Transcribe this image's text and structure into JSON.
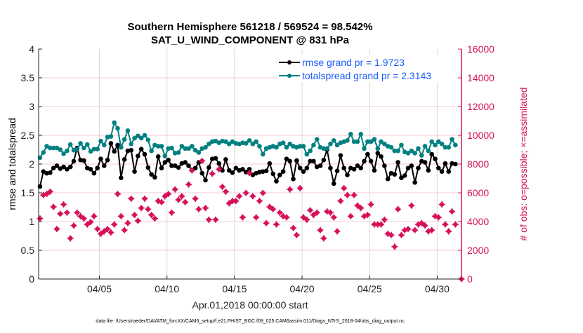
{
  "chart_data": {
    "type": "line",
    "title": [
      "Southern Hemisphere 561218 / 569524 = 98.542%",
      "SAT_U_WIND_COMPONENT @ 831 hPa"
    ],
    "xlabel": "Apr.01,2018 00:00:00 start",
    "ylabel": "rmse and totalspread",
    "y2label": "# of obs: o=possible; ×=assimilated",
    "footer": "data file: /Users/raeder/DAI/ATM_forcXX/CAM6_setup/f.e21.FHIST_BGC.f09_025.CAM6assim.011/Diags_NTrS_2018-04/obs_diag_output.nc",
    "xlim": [
      0.5,
      31.8
    ],
    "ylim": [
      0,
      4
    ],
    "y2lim": [
      0,
      16000
    ],
    "xticks": [
      {
        "v": 5,
        "label": "04/05"
      },
      {
        "v": 10,
        "label": "04/10"
      },
      {
        "v": 15,
        "label": "04/15"
      },
      {
        "v": 20,
        "label": "04/20"
      },
      {
        "v": 25,
        "label": "04/25"
      },
      {
        "v": 30,
        "label": "04/30"
      }
    ],
    "yticks": [
      "0",
      "0.5",
      "1",
      "1.5",
      "2",
      "2.5",
      "3",
      "3.5",
      "4"
    ],
    "y2ticks": [
      "0",
      "2000",
      "4000",
      "6000",
      "8000",
      "10000",
      "12000",
      "14000",
      "16000"
    ],
    "grid": true,
    "legend": {
      "placement": "top-right",
      "text_color": "#1a5cff"
    },
    "colors": {
      "rmse": "#000000",
      "totalspread": "#008080",
      "obs": "#d6105a",
      "grid_h": "#f2c8d8",
      "grid_v": "#d9d9d9"
    },
    "x": [
      0.6,
      0.85,
      1.1,
      1.35,
      1.6,
      1.85,
      2.1,
      2.35,
      2.6,
      2.85,
      3.1,
      3.35,
      3.6,
      3.85,
      4.1,
      4.35,
      4.6,
      4.85,
      5.1,
      5.35,
      5.6,
      5.85,
      6.1,
      6.35,
      6.6,
      6.85,
      7.1,
      7.35,
      7.6,
      7.85,
      8.1,
      8.35,
      8.6,
      8.85,
      9.1,
      9.35,
      9.6,
      9.85,
      10.1,
      10.35,
      10.6,
      10.85,
      11.1,
      11.35,
      11.6,
      11.85,
      12.1,
      12.35,
      12.6,
      12.85,
      13.1,
      13.35,
      13.6,
      13.85,
      14.1,
      14.35,
      14.6,
      14.85,
      15.1,
      15.35,
      15.6,
      15.85,
      16.1,
      16.35,
      16.6,
      16.85,
      17.1,
      17.35,
      17.6,
      17.85,
      18.1,
      18.35,
      18.6,
      18.85,
      19.1,
      19.35,
      19.6,
      19.85,
      20.1,
      20.35,
      20.6,
      20.85,
      21.1,
      21.35,
      21.6,
      21.85,
      22.1,
      22.35,
      22.6,
      22.85,
      23.1,
      23.35,
      23.6,
      23.85,
      24.1,
      24.35,
      24.6,
      24.85,
      25.1,
      25.35,
      25.6,
      25.85,
      26.1,
      26.35,
      26.6,
      26.85,
      27.1,
      27.35,
      27.6,
      27.85,
      28.1,
      28.35,
      28.6,
      28.85,
      29.1,
      29.35,
      29.6,
      29.85,
      30.1,
      30.35,
      30.6,
      30.85,
      31.1,
      31.35
    ],
    "series": [
      {
        "name": "rmse grand pr = 1.9723",
        "axis": "left",
        "marker": "circle",
        "values": [
          1.61,
          1.87,
          1.84,
          1.85,
          1.93,
          1.97,
          1.92,
          1.95,
          1.91,
          1.95,
          2.05,
          2.28,
          2.07,
          2.06,
          1.93,
          1.91,
          1.84,
          1.93,
          2.09,
          1.97,
          2.07,
          2.36,
          2.22,
          2.33,
          1.76,
          2.08,
          2.23,
          2.24,
          1.87,
          2.14,
          2.26,
          2.17,
          1.94,
          1.82,
          1.77,
          2.13,
          1.93,
          2.03,
          2.07,
          1.97,
          1.97,
          1.94,
          2.01,
          2.03,
          1.97,
          1.89,
          1.93,
          2.03,
          1.84,
          1.72,
          1.94,
          2.09,
          2.1,
          2.01,
          1.89,
          2.08,
          1.89,
          1.85,
          1.93,
          1.89,
          1.91,
          1.86,
          1.91,
          1.81,
          1.84,
          1.86,
          1.87,
          1.88,
          2.01,
          1.83,
          1.7,
          1.81,
          1.87,
          2.09,
          2.05,
          1.74,
          2.06,
          1.93,
          1.87,
          1.93,
          2.05,
          2.05,
          1.95,
          1.97,
          2.07,
          2.25,
          1.93,
          1.66,
          1.88,
          2.15,
          1.93,
          1.81,
          1.93,
          1.91,
          1.97,
          1.93,
          2.05,
          2.17,
          2.05,
          1.89,
          2.19,
          2.13,
          1.97,
          1.74,
          1.84,
          1.82,
          2.03,
          1.76,
          1.8,
          1.93,
          1.97,
          1.68,
          1.93,
          2.05,
          2.03,
          1.89,
          2.17,
          2.09,
          1.93,
          1.87,
          2.01,
          1.87,
          2.01,
          2.0
        ]
      },
      {
        "name": "totalspread grand pr = 2.3143",
        "axis": "left",
        "marker": "circle",
        "values": [
          2.11,
          2.2,
          2.31,
          2.28,
          2.28,
          2.28,
          2.25,
          2.18,
          2.23,
          2.34,
          2.24,
          2.26,
          2.36,
          2.28,
          2.34,
          2.22,
          2.26,
          2.26,
          2.4,
          2.33,
          2.47,
          2.48,
          2.72,
          2.62,
          2.29,
          2.43,
          2.58,
          2.35,
          2.45,
          2.49,
          2.45,
          2.5,
          2.42,
          2.23,
          2.33,
          2.31,
          2.31,
          2.14,
          2.27,
          2.28,
          2.19,
          2.2,
          2.31,
          2.27,
          2.27,
          2.31,
          2.24,
          2.2,
          2.27,
          2.29,
          2.35,
          2.39,
          2.4,
          2.37,
          2.4,
          2.39,
          2.35,
          2.39,
          2.36,
          2.35,
          2.37,
          2.36,
          2.41,
          2.35,
          2.39,
          2.31,
          2.17,
          2.27,
          2.29,
          2.31,
          2.29,
          2.35,
          2.37,
          2.29,
          2.35,
          2.31,
          2.29,
          2.31,
          2.31,
          2.17,
          2.23,
          2.33,
          2.43,
          2.29,
          2.27,
          2.27,
          2.35,
          2.41,
          2.33,
          2.37,
          2.39,
          2.41,
          2.52,
          2.39,
          2.39,
          2.52,
          2.27,
          2.39,
          2.39,
          2.43,
          2.27,
          2.39,
          2.35,
          2.31,
          2.29,
          2.23,
          2.23,
          2.33,
          2.21,
          2.19,
          2.23,
          2.19,
          2.27,
          2.15,
          2.31,
          2.23,
          2.39,
          2.33,
          2.39,
          2.35,
          2.29,
          2.29,
          2.43,
          2.33
        ]
      },
      {
        "name": "# of obs",
        "axis": "right",
        "marker": "asterisk",
        "values": [
          4210,
          5840,
          5920,
          6080,
          5020,
          3480,
          4540,
          5190,
          4620,
          2830,
          3720,
          4620,
          4370,
          4210,
          3800,
          3970,
          4370,
          3480,
          3150,
          3320,
          3480,
          3240,
          3800,
          5920,
          4370,
          3400,
          3890,
          5590,
          4460,
          4050,
          4940,
          5590,
          4860,
          4460,
          4210,
          5430,
          5350,
          5760,
          5920,
          4620,
          6240,
          5510,
          5760,
          5350,
          6580,
          7560,
          5590,
          4860,
          8220,
          4940,
          4130,
          7330,
          4130,
          7640,
          6420,
          6080,
          5270,
          5430,
          5430,
          5760,
          4290,
          5990,
          7380,
          5760,
          4290,
          5430,
          5990,
          3890,
          5020,
          4860,
          3800,
          4620,
          4370,
          4290,
          6240,
          3550,
          3060,
          6320,
          4290,
          4130,
          4780,
          4460,
          4620,
          3400,
          2830,
          4700,
          4620,
          4290,
          3320,
          5430,
          6320,
          5840,
          4370,
          5840,
          5110,
          4940,
          4370,
          4460,
          5190,
          3800,
          3800,
          3800,
          4130,
          3150,
          3060,
          2250,
          4860,
          3060,
          3400,
          3480,
          5110,
          3400,
          3800,
          3890,
          3720,
          3320,
          3400,
          4370,
          4290,
          5190,
          3800,
          3320,
          4700,
          3800
        ]
      },
      {
        "axis": "right",
        "marker": "asterisk",
        "x": [
          31.8
        ],
        "values": [
          0
        ]
      }
    ]
  }
}
